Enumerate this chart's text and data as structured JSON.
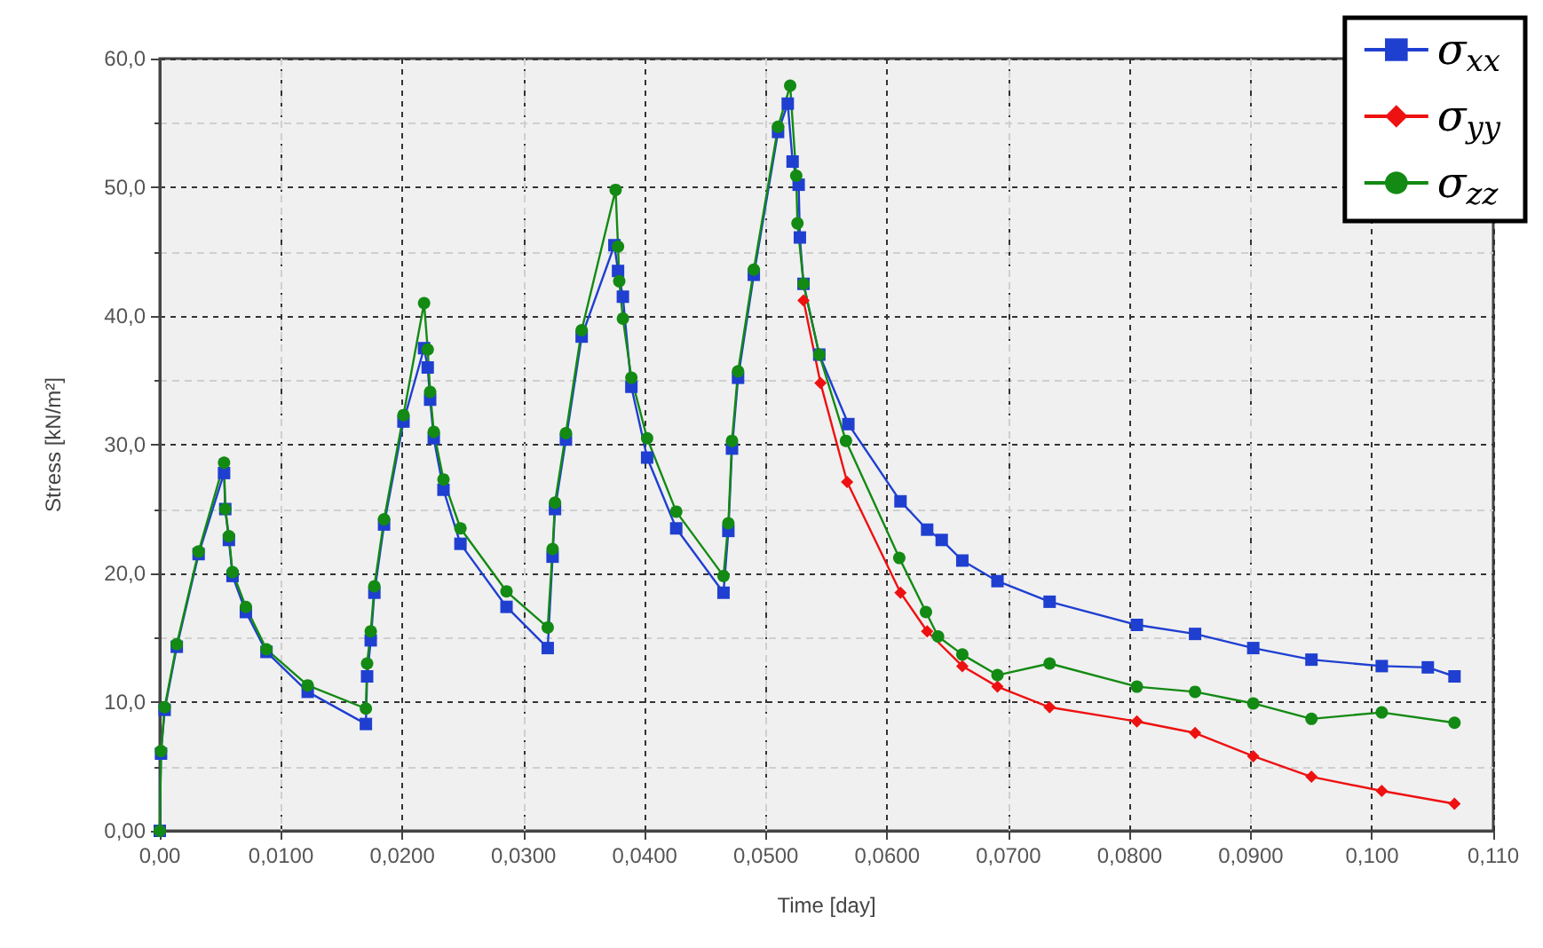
{
  "chart_data": {
    "type": "line",
    "xlabel": "Time [day]",
    "ylabel": "Stress [kN/m²]",
    "xlim": [
      0,
      0.11
    ],
    "ylim": [
      0,
      60
    ],
    "xticks": [
      {
        "value": 0,
        "label": "0,00"
      },
      {
        "value": 0.01,
        "label": "0,0100"
      },
      {
        "value": 0.02,
        "label": "0,0200"
      },
      {
        "value": 0.03,
        "label": "0,0300"
      },
      {
        "value": 0.04,
        "label": "0,0400"
      },
      {
        "value": 0.05,
        "label": "0,0500"
      },
      {
        "value": 0.06,
        "label": "0,0600"
      },
      {
        "value": 0.07,
        "label": "0,0700"
      },
      {
        "value": 0.08,
        "label": "0,0800"
      },
      {
        "value": 0.09,
        "label": "0,0900"
      },
      {
        "value": 0.1,
        "label": "0,100"
      },
      {
        "value": 0.11,
        "label": "0,110"
      }
    ],
    "yticks": [
      {
        "value": 0,
        "label": "0,00"
      },
      {
        "value": 10,
        "label": "10,0"
      },
      {
        "value": 20,
        "label": "20,0"
      },
      {
        "value": 30,
        "label": "30,0"
      },
      {
        "value": 40,
        "label": "40,0"
      },
      {
        "value": 50,
        "label": "50,0"
      },
      {
        "value": 60,
        "label": "60,0"
      }
    ],
    "grid": true,
    "legend": "top right",
    "line_style": "solid",
    "series": [
      {
        "name": "σ$_{xx}$",
        "color": "#1f3fd0",
        "marker": "square",
        "x": [
          0,
          0.0001,
          0.0004,
          0.0014,
          0.0032,
          0.0053,
          0.0054,
          0.0057,
          0.006,
          0.0071,
          0.0088,
          0.0122,
          0.017,
          0.0171,
          0.0174,
          0.0177,
          0.0185,
          0.0201,
          0.0218,
          0.0221,
          0.0223,
          0.0226,
          0.0234,
          0.0248,
          0.0286,
          0.032,
          0.0324,
          0.0326,
          0.0335,
          0.0348,
          0.0375,
          0.0378,
          0.0382,
          0.0389,
          0.0402,
          0.0426,
          0.0465,
          0.0469,
          0.0472,
          0.0477,
          0.049,
          0.051,
          0.0518,
          0.0522,
          0.0527,
          0.0528,
          0.0531,
          0.0544,
          0.0568,
          0.0611,
          0.0633,
          0.0645,
          0.0662,
          0.0691,
          0.0734,
          0.0806,
          0.0854,
          0.0902,
          0.095,
          0.1008,
          0.1046,
          0.1068
        ],
        "values": [
          0,
          6.0,
          9.4,
          14.3,
          21.5,
          27.8,
          25.0,
          22.6,
          19.8,
          17.0,
          13.9,
          10.8,
          8.3,
          12.0,
          14.8,
          18.5,
          23.8,
          31.8,
          37.5,
          36.0,
          33.5,
          30.5,
          26.5,
          22.3,
          17.4,
          14.2,
          21.3,
          25.0,
          30.4,
          38.4,
          45.5,
          43.5,
          41.5,
          34.5,
          29.0,
          23.5,
          18.5,
          23.3,
          29.7,
          35.2,
          43.2,
          54.3,
          56.5,
          52.0,
          50.2,
          46.1,
          42.5,
          37.0,
          31.6,
          25.6,
          23.4,
          22.6,
          21.0,
          19.4,
          17.8,
          16.0,
          15.3,
          14.2,
          13.3,
          12.8,
          12.7,
          12.0
        ]
      },
      {
        "name": "σ$_{yy}$",
        "color": "#ee1111",
        "marker": "diamond",
        "x": [
          0.0531,
          0.0545,
          0.0567,
          0.0611,
          0.0633,
          0.0662,
          0.0691,
          0.0734,
          0.0806,
          0.0854,
          0.0902,
          0.095,
          0.1008,
          0.1068
        ],
        "values": [
          41.2,
          34.8,
          27.1,
          18.5,
          15.5,
          12.8,
          11.2,
          9.6,
          8.5,
          7.6,
          5.8,
          4.2,
          3.1,
          2.1
        ]
      },
      {
        "name": "σ$_{zz}$",
        "color": "#138a13",
        "marker": "circle",
        "x": [
          0,
          0.0001,
          0.0004,
          0.0014,
          0.0032,
          0.0053,
          0.0054,
          0.0057,
          0.006,
          0.0071,
          0.0088,
          0.0122,
          0.017,
          0.0171,
          0.0174,
          0.0177,
          0.0185,
          0.0201,
          0.0218,
          0.0221,
          0.0223,
          0.0226,
          0.0234,
          0.0248,
          0.0286,
          0.032,
          0.0324,
          0.0326,
          0.0335,
          0.0348,
          0.0376,
          0.0378,
          0.0379,
          0.0382,
          0.0389,
          0.0402,
          0.0426,
          0.0465,
          0.0469,
          0.0472,
          0.0477,
          0.049,
          0.051,
          0.052,
          0.0525,
          0.0526,
          0.0531,
          0.0544,
          0.0566,
          0.061,
          0.0632,
          0.0642,
          0.0662,
          0.0691,
          0.0734,
          0.0806,
          0.0854,
          0.0902,
          0.095,
          0.1008,
          0.1068
        ],
        "values": [
          0,
          6.2,
          9.6,
          14.5,
          21.7,
          28.6,
          25.0,
          22.9,
          20.1,
          17.4,
          14.1,
          11.3,
          9.5,
          13.0,
          15.5,
          19.0,
          24.2,
          32.3,
          41.0,
          37.4,
          34.1,
          31.0,
          27.3,
          23.5,
          18.6,
          15.8,
          21.9,
          25.5,
          30.9,
          38.9,
          49.8,
          45.4,
          42.7,
          39.8,
          35.2,
          30.5,
          24.8,
          19.8,
          23.9,
          30.3,
          35.7,
          43.6,
          54.7,
          57.9,
          50.9,
          47.2,
          42.5,
          37.0,
          30.3,
          21.2,
          17.0,
          15.1,
          13.7,
          12.1,
          13.0,
          11.2,
          10.8,
          9.9,
          8.7,
          9.2,
          8.4
        ]
      }
    ]
  }
}
